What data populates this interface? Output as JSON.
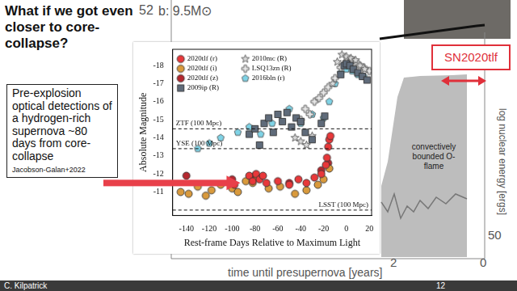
{
  "slide": {
    "title": "What if we got even closer to core-collapse?",
    "callout": "Pre-explosion optical detections of a hydrogen-rich supernova ~80 days from core-collapse",
    "citation": "Jacobson-Galan+2022",
    "highlight_label": "SN2020tlf",
    "footer_author": "C. Kilpatrick",
    "footer_page": "12"
  },
  "background_figure": {
    "panel_label": "b: 9.5M⊙",
    "x_label": "time until presupernova [years]",
    "y_label": "log nuclear energy [ergs]",
    "xticks": [
      2,
      0
    ],
    "yticks_left": [
      52
    ],
    "yticks_right": [
      50
    ],
    "annotation": "convectively bounded O-flame"
  },
  "chart_data": {
    "type": "scatter",
    "x_label": "Rest-frame Days Relative to Maximum Light",
    "y_label": "Absolute Magnitude",
    "xlim": [
      -152,
      22
    ],
    "xticks": [
      -140,
      -120,
      -100,
      -80,
      -60,
      -40,
      -20,
      0,
      20
    ],
    "ylim": [
      -9.7,
      -18.9
    ],
    "yticks": [
      -11,
      -12,
      -13,
      -14,
      -15,
      -16,
      -17,
      -18
    ],
    "grid": false,
    "legend": "upper left",
    "annotations": [
      {
        "text": "ZTF (100 Mpc)",
        "y": -14.5,
        "line_style": "dashed"
      },
      {
        "text": "YSE (100 Mpc)",
        "y": -13.4,
        "line_style": "dashed"
      },
      {
        "text": "LSST (100 Mpc)",
        "y": -10.0,
        "line_style": "dashed"
      }
    ],
    "series": [
      {
        "name": "2020tlf (r)",
        "color": "#e8383a",
        "marker": "circle",
        "x": [
          -98,
          -85,
          -82,
          -79,
          -76,
          -73,
          -70,
          -60,
          -50,
          -42,
          -35,
          -28,
          -22,
          -18,
          -17,
          -16,
          -15,
          -14
        ],
        "values": [
          -11.4,
          -11.9,
          -11.6,
          -12.0,
          -11.7,
          -11.9,
          -11.5,
          -11.6,
          -11.4,
          -11.7,
          -11.5,
          -11.8,
          -12.0,
          -12.5,
          -12.9,
          -13.5,
          -13.9,
          -14.1
        ]
      },
      {
        "name": "2020tlf (i)",
        "color": "#d99a3c",
        "marker": "circle",
        "x": [
          -145,
          -138,
          -130,
          -123,
          -118,
          -110,
          -100,
          -95,
          -88,
          -82,
          -78,
          -68,
          -58,
          -45,
          -35,
          -25,
          -20,
          -15
        ],
        "values": [
          -11.0,
          -10.9,
          -11.3,
          -10.8,
          -11.1,
          -11.4,
          -11.2,
          -11.0,
          -11.6,
          -11.5,
          -11.8,
          -11.2,
          -11.3,
          -10.9,
          -11.1,
          -11.4,
          -11.7,
          -12.3
        ]
      },
      {
        "name": "2020tlf (z)",
        "color": "#b5282f",
        "marker": "circle",
        "x": [
          -140,
          -100,
          -80,
          -50,
          -22,
          -16
        ],
        "values": [
          -11.9,
          -11.7,
          -11.9,
          -11.5,
          -12.2,
          -12.6
        ]
      },
      {
        "name": "2009ip (R)",
        "color": "#5f6b7a",
        "marker": "square",
        "x": [
          -85,
          -80,
          -76,
          -72,
          -68,
          -64,
          -60,
          -56,
          -52,
          -48,
          -44,
          -40,
          -36,
          -30,
          -22,
          -19,
          -5,
          -2,
          0,
          3,
          6,
          10,
          14,
          18
        ],
        "values": [
          -14.2,
          -14.5,
          -13.6,
          -14.8,
          -15.1,
          -14.3,
          -15.3,
          -14.9,
          -15.4,
          -14.6,
          -15.1,
          -14.9,
          -14.3,
          -13.9,
          -14.8,
          -15.2,
          -17.5,
          -18.0,
          -18.1,
          -18.0,
          -17.8,
          -17.6,
          -17.4,
          -17.2
        ]
      },
      {
        "name": "2010mc (R)",
        "color": "#d9d9d9",
        "marker": "star",
        "x": [
          -45,
          -40,
          -35,
          -30,
          -12,
          -8,
          -4,
          0,
          4,
          8,
          12,
          16
        ],
        "values": [
          -14.0,
          -13.8,
          -13.6,
          -14.1,
          -17.0,
          -18.2,
          -18.6,
          -18.5,
          -18.4,
          -18.3,
          -18.0,
          -17.8
        ]
      },
      {
        "name": "LSQ13zn (R)",
        "color": "#e6e6e6",
        "marker": "cross",
        "x": [
          -40,
          -36,
          -32,
          -28,
          -24,
          -20,
          -16,
          -10,
          -5,
          0,
          5,
          10,
          15,
          20
        ],
        "values": [
          -15.0,
          -15.6,
          -15.3,
          -16.0,
          -16.2,
          -16.5,
          -16.8,
          -17.3,
          -17.9,
          -18.2,
          -18.3,
          -18.1,
          -17.9,
          -17.7
        ]
      },
      {
        "name": "2016bln (r)",
        "color": "#7fd3e6",
        "marker": "pentagon",
        "x": [
          -130,
          -120,
          -110,
          -95,
          -85,
          -75,
          -65,
          -50,
          -40,
          -30,
          -20,
          -15,
          -10,
          -5,
          0,
          5,
          10,
          15
        ],
        "values": [
          -13.4,
          -13.7,
          -14.0,
          -14.3,
          -14.6,
          -14.2,
          -14.8,
          -15.6,
          -14.8,
          -15.3,
          -15.1,
          -16.0,
          -17.0,
          -17.6,
          -17.8,
          -17.7,
          -17.5,
          -17.4
        ]
      }
    ]
  }
}
